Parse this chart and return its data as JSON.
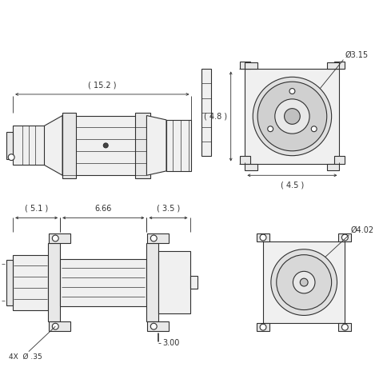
{
  "bg_color": "#ffffff",
  "line_color": "#303030",
  "annotations": {
    "top_width": "( 15.2 )",
    "right_top_dia": "Ø3.15",
    "right_top_height": "( 4.8 )",
    "right_top_width": "( 4.5 )",
    "bot_left_seg1": "( 5.1 )",
    "bot_mid": "6.66",
    "bot_right_seg": "( 3.5 )",
    "bot_bolt_dim": "3.00",
    "bot_hole": "4X  Ø .35",
    "bot_right_dia": "Ø4.02"
  }
}
